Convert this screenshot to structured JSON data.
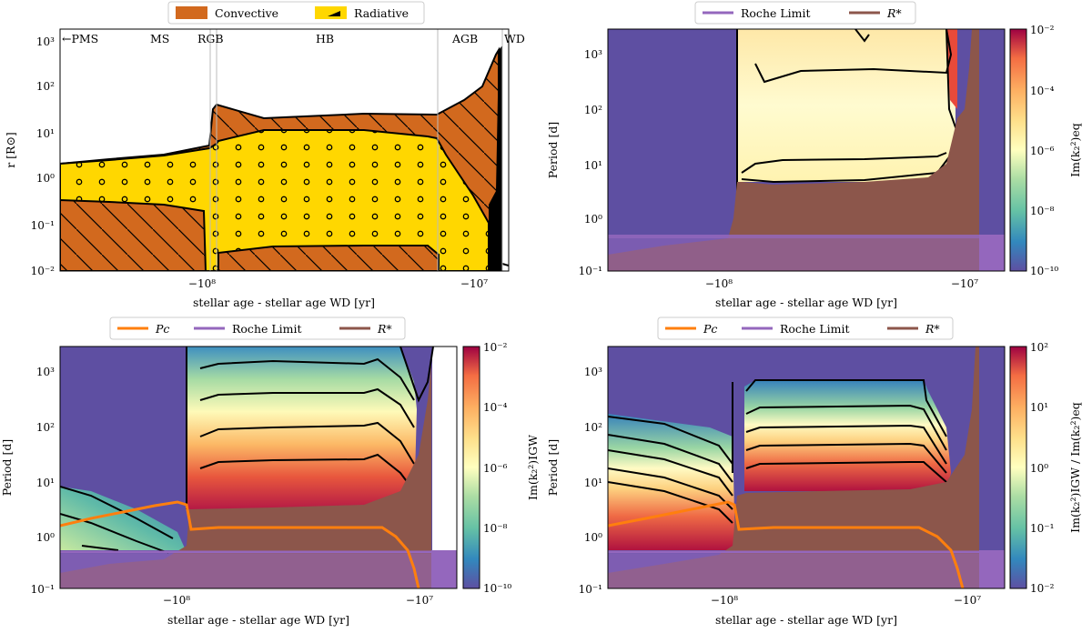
{
  "panels": {
    "a": {
      "legend": [
        "Convective",
        "Radiative"
      ],
      "ylabel": "r [R⊙]",
      "xlabel": "stellar age - stellar age WD [yr]",
      "xticks": [
        "−10⁸",
        "−10⁷"
      ],
      "yticks": [
        "10³",
        "10²",
        "10¹",
        "10⁰",
        "10⁻¹",
        "10⁻²"
      ],
      "phases": [
        "←PMS",
        "MS",
        "RGB",
        "HB",
        "AGB",
        "WD"
      ]
    },
    "b": {
      "legend": [
        "Roche Limit",
        "R*"
      ],
      "ylabel": "Period [d]",
      "xlabel": "stellar age - stellar age WD [yr]",
      "xticks": [
        "−10⁸",
        "−10⁷"
      ],
      "yticks": [
        "10³",
        "10²",
        "10¹",
        "10⁰",
        "10⁻¹"
      ],
      "cbar_label": "Im(k₂²)eq",
      "cbar_ticks": [
        "10⁻²",
        "10⁻⁴",
        "10⁻⁶",
        "10⁻⁸",
        "10⁻¹⁰"
      ]
    },
    "c": {
      "legend": [
        "Pc",
        "Roche Limit",
        "R*"
      ],
      "ylabel": "Period [d]",
      "xlabel": "stellar age - stellar age WD [yr]",
      "xticks": [
        "−10⁸",
        "−10⁷"
      ],
      "yticks": [
        "10³",
        "10²",
        "10¹",
        "10⁰",
        "10⁻¹"
      ],
      "cbar_label": "Im(k₂²)IGW",
      "cbar_ticks": [
        "10⁻²",
        "10⁻⁴",
        "10⁻⁶",
        "10⁻⁸",
        "10⁻¹⁰"
      ]
    },
    "d": {
      "legend": [
        "Pc",
        "Roche Limit",
        "R*"
      ],
      "ylabel": "Period [d]",
      "xlabel": "stellar age - stellar age WD [yr]",
      "xticks": [
        "−10⁸",
        "−10⁷"
      ],
      "yticks": [
        "10³",
        "10²",
        "10¹",
        "10⁰",
        "10⁻¹"
      ],
      "cbar_label": "Im(k₂²)IGW / Im(k₂²)eq",
      "cbar_ticks": [
        "10²",
        "10¹",
        "10⁰",
        "10⁻¹",
        "10⁻²"
      ]
    }
  },
  "colors": {
    "convective": "#d2691e",
    "radiative": "#ffd700",
    "roche": "#9467bd",
    "rstar": "#8c564b",
    "pc": "#ff7f0e",
    "background": "#5e4fa2"
  },
  "chart_data": [
    {
      "type": "area",
      "panel": "top-left",
      "x_scale": "symlog-negative",
      "y_scale": "log",
      "ylim": [
        0.01,
        1500
      ],
      "series": [
        {
          "name": "Convective"
        },
        {
          "name": "Radiative"
        }
      ],
      "phase_boundaries": [
        "RGB/HB",
        "HB/AGB",
        "AGB/WD"
      ]
    },
    {
      "type": "heatmap",
      "panel": "top-right",
      "y_scale": "log",
      "ylim": [
        0.1,
        3000
      ],
      "colorbar_range": [
        1e-10,
        0.01
      ]
    },
    {
      "type": "heatmap",
      "panel": "bottom-left",
      "y_scale": "log",
      "ylim": [
        0.1,
        3000
      ],
      "colorbar_range": [
        1e-10,
        0.01
      ],
      "series": [
        {
          "name": "Pc",
          "x_rel": [
            0.0,
            0.15,
            0.3,
            0.4,
            0.47,
            0.5,
            0.55,
            0.8,
            0.85,
            0.88,
            0.9
          ],
          "y": [
            1.4,
            2.0,
            2.8,
            3.5,
            3.3,
            1.3,
            1.3,
            1.3,
            1.0,
            0.3,
            0.1
          ]
        }
      ]
    },
    {
      "type": "heatmap",
      "panel": "bottom-right",
      "y_scale": "log",
      "ylim": [
        0.1,
        3000
      ],
      "colorbar_range": [
        0.01,
        100
      ]
    }
  ]
}
